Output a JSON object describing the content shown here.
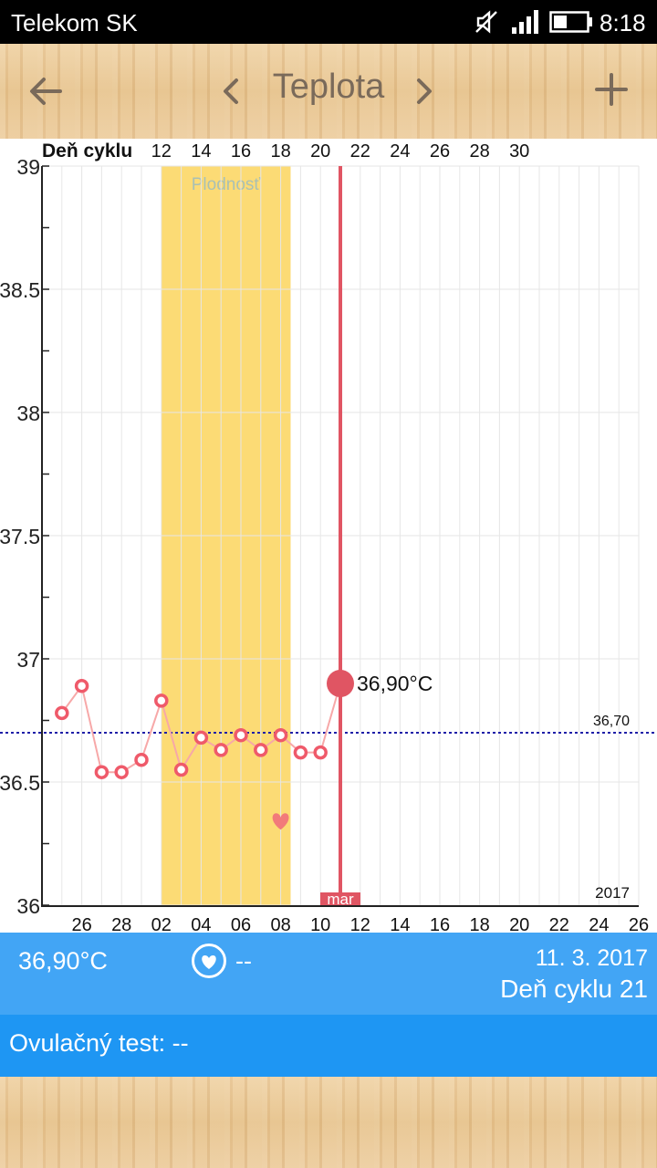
{
  "status_bar": {
    "carrier": "Telekom SK",
    "time": "8:18",
    "icons": [
      "mute-icon",
      "signal-icon",
      "battery-icon"
    ]
  },
  "header": {
    "title": "Teplota",
    "back_icon": "arrow-left-icon",
    "prev_icon": "chevron-left-icon",
    "next_icon": "chevron-right-icon",
    "add_icon": "plus-icon"
  },
  "chart_data": {
    "type": "line",
    "top_axis_label": "Deň cyklu",
    "top_ticks": [
      "12",
      "14",
      "16",
      "18",
      "20",
      "22",
      "24",
      "26",
      "28",
      "30"
    ],
    "bottom_ticks": [
      "26",
      "28",
      "02",
      "04",
      "06",
      "08",
      "10",
      "12",
      "14",
      "16",
      "18",
      "20",
      "22",
      "24",
      "26"
    ],
    "y_ticks": [
      "39",
      "38.5",
      "38",
      "37.5",
      "37",
      "36.5",
      "36"
    ],
    "ylim": [
      36,
      39
    ],
    "day_range": [
      -1,
      29
    ],
    "series": [
      {
        "x": [
          0,
          1,
          2,
          3,
          4,
          5,
          6,
          7,
          8,
          9,
          10,
          11,
          12,
          13,
          14
        ],
        "y": [
          36.78,
          36.89,
          36.54,
          36.54,
          36.59,
          36.83,
          36.55,
          36.68,
          36.63,
          36.69,
          36.63,
          36.69,
          36.62,
          36.62,
          36.9
        ]
      }
    ],
    "fertile_window": {
      "start": 5,
      "end": 11.5,
      "label": "Plodnosť"
    },
    "coverline": {
      "value": 36.7,
      "label": "36,70"
    },
    "selected": {
      "x": 14,
      "value": 36.9,
      "label": "36,90°C"
    },
    "month_marker": {
      "x": 14,
      "label": "mar"
    },
    "intercourse_marker": {
      "x": 11,
      "y": 36.34
    },
    "year_label": "2017",
    "colors": {
      "line": "#f7a8a8",
      "point": "#ef5a6a",
      "selected": "#e05563",
      "fertile": "#fcdb75",
      "coverline": "#1f1fa8",
      "grid": "#e6e6e6"
    }
  },
  "summary": {
    "temperature": "36,90°C",
    "intercourse": "--",
    "date": "11. 3. 2017",
    "cycle_day": "Deň cyklu 21",
    "heart_icon": "heart-circle-icon"
  },
  "ovulation": {
    "label": "Ovulačný test: --"
  }
}
